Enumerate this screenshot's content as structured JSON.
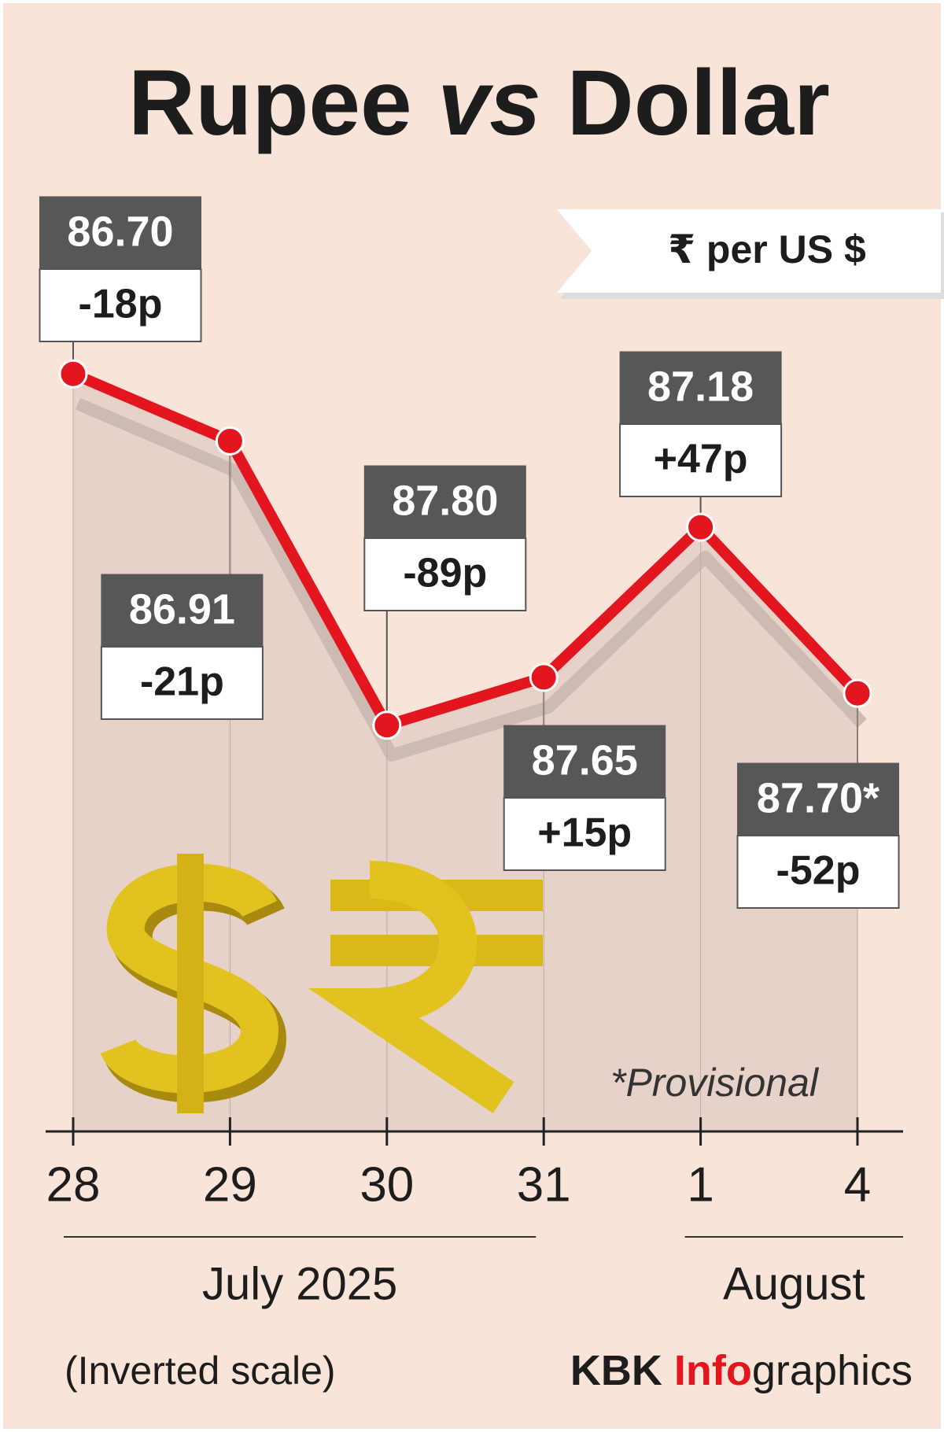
{
  "chart_data": {
    "type": "line",
    "title_parts": [
      "Rupee",
      "vs",
      "Dollar"
    ],
    "unit_label": "₹ per US $",
    "categories": [
      "28",
      "29",
      "30",
      "31",
      "1",
      "4"
    ],
    "x_groups": [
      "July 2025",
      "August"
    ],
    "values": [
      86.7,
      86.91,
      87.8,
      87.65,
      87.18,
      87.7
    ],
    "value_labels": [
      "86.70",
      "86.91",
      "87.80",
      "87.65",
      "87.18",
      "87.70*"
    ],
    "change_labels": [
      "-18p",
      "-21p",
      "-89p",
      "+15p",
      "+47p",
      "-52p"
    ],
    "color": "#e3161f",
    "ylim": [
      86.5,
      89.0
    ],
    "inverted": true,
    "scale_note": "(Inverted scale)",
    "footnote": "*Provisional",
    "credit_parts": [
      "KBK",
      "Info",
      "graphics"
    ]
  }
}
